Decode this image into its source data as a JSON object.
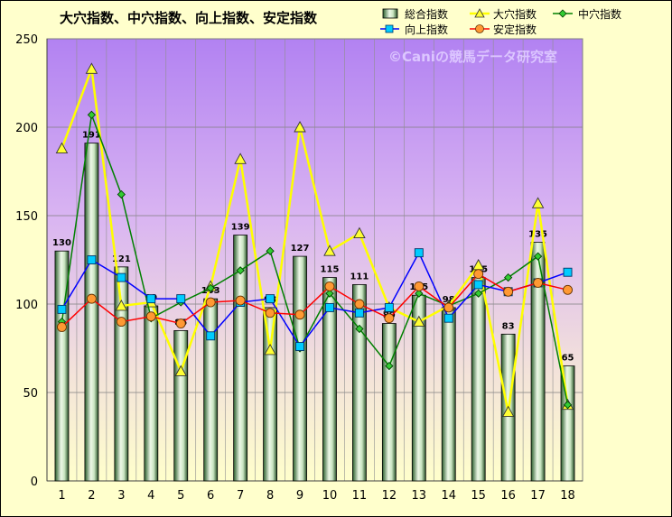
{
  "chart_data": {
    "type": "bar",
    "title": "大穴指数、中穴指数、向上指数、安定指数",
    "categories": [
      "1",
      "2",
      "3",
      "4",
      "5",
      "6",
      "7",
      "8",
      "9",
      "10",
      "11",
      "12",
      "13",
      "14",
      "15",
      "16",
      "17",
      "18"
    ],
    "ylim": [
      0,
      250
    ],
    "yticks": [
      0,
      50,
      100,
      150,
      200,
      250
    ],
    "grid": true,
    "legend_position": "top",
    "series": [
      {
        "name": "総合指数",
        "type": "bar",
        "color": "#2F6A30",
        "values": [
          130,
          191,
          121,
          99,
          85,
          103,
          139,
          98,
          127,
          115,
          111,
          89,
          105,
          98,
          115,
          83,
          135,
          65
        ]
      },
      {
        "name": "大穴指数",
        "type": "line",
        "color": "#FFFF00",
        "marker_color": "#FFFF33",
        "values": [
          188,
          233,
          99,
          101,
          62,
          110,
          182,
          74,
          200,
          130,
          140,
          98,
          90,
          99,
          122,
          39,
          157,
          43
        ]
      },
      {
        "name": "中穴指数",
        "type": "line",
        "color": "#008000",
        "marker_color": "#33CC33",
        "values": [
          90,
          207,
          162,
          92,
          101,
          109,
          119,
          130,
          75,
          106,
          86,
          65,
          106,
          99,
          106,
          115,
          127,
          43
        ]
      },
      {
        "name": "向上指数",
        "type": "line",
        "color": "#0000FF",
        "marker_color": "#00CCFF",
        "values": [
          97,
          125,
          115,
          103,
          103,
          82,
          101,
          103,
          76,
          98,
          95,
          98,
          129,
          92,
          111,
          107,
          112,
          118
        ]
      },
      {
        "name": "安定指数",
        "type": "line",
        "color": "#FF0000",
        "marker_color": "#FF9933",
        "values": [
          87,
          103,
          90,
          93,
          89,
          101,
          102,
          95,
          94,
          110,
          100,
          92,
          110,
          98,
          117,
          107,
          112,
          108
        ]
      }
    ]
  },
  "watermark": "©Caniの競馬データ研究室",
  "colors": {
    "background": "#FFFFCC",
    "plot_top": "#B282F2",
    "plot_bottom": "#FFFFCC"
  }
}
